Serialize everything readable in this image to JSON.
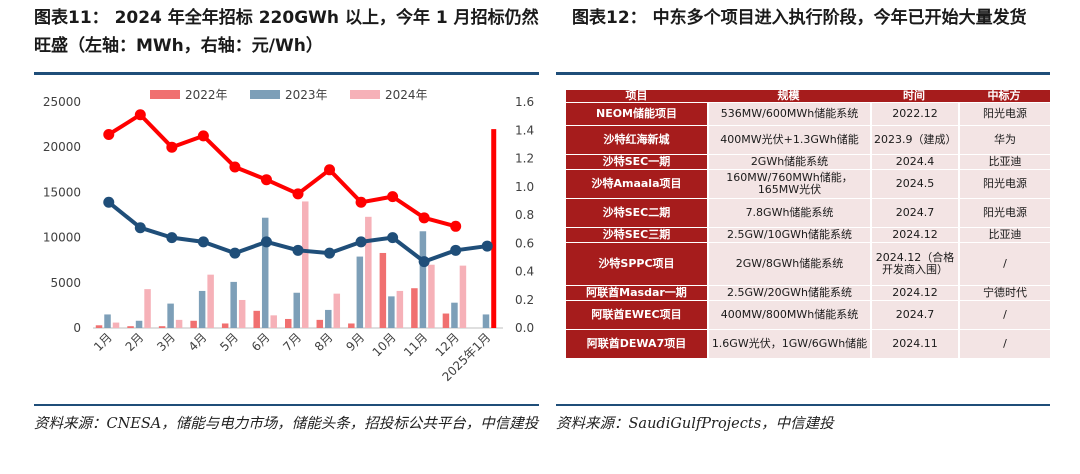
{
  "figure11": {
    "title": "图表11：  2024 年全年招标 220GWh 以上，今年 1 月招标仍然旺盛（左轴：MWh，右轴：元/Wh）",
    "source": "资料来源：CNESA，储能与电力市场，储能头条，招投标公共平台，中信建投"
  },
  "figure12": {
    "title": "图表12：  中东多个项目进入执行阶段，今年已开始大量发货",
    "source": "资料来源：SaudiGulfProjects，中信建投"
  },
  "colors": {
    "bar_2022": "#f07070",
    "bar_2023": "#7d9fb8",
    "bar_2024": "#f6b1b8",
    "line_2024": "#ff0000",
    "line_2023": "#1f4e79",
    "bar_2025": "#ff0000",
    "table_header": "#a61c1c",
    "table_cell": "#f3e4e4",
    "rule": "#1f4e79"
  },
  "chart_data": {
    "type": "bar",
    "categories": [
      "1月",
      "2月",
      "3月",
      "4月",
      "5月",
      "6月",
      "7月",
      "8月",
      "9月",
      "10月",
      "11月",
      "12月",
      "2025年1月"
    ],
    "left_axis": {
      "ticks": [
        "0",
        "5000",
        "10000",
        "15000",
        "20000",
        "25000"
      ],
      "ylim": [
        0,
        25000
      ]
    },
    "right_axis": {
      "ticks": [
        "0.0",
        "0.2",
        "0.4",
        "0.6",
        "0.8",
        "1.0",
        "1.2",
        "1.4",
        "1.6"
      ],
      "ylim": [
        0,
        1.6
      ]
    },
    "legend_position": "top",
    "series": [
      {
        "name": "2022年",
        "kind": "bar",
        "axis": "left",
        "values": [
          300,
          200,
          200,
          800,
          500,
          1900,
          1000,
          900,
          500,
          8300,
          4400,
          1600,
          null
        ]
      },
      {
        "name": "2023年",
        "kind": "bar",
        "axis": "left",
        "values": [
          1500,
          800,
          2700,
          4100,
          5100,
          12200,
          3900,
          2000,
          7900,
          3500,
          10700,
          2800,
          1500
        ]
      },
      {
        "name": "2024年",
        "kind": "bar",
        "axis": "left",
        "values": [
          600,
          4300,
          900,
          5900,
          3100,
          1400,
          14000,
          3800,
          12300,
          4100,
          7000,
          6900,
          null
        ]
      },
      {
        "kind": "line",
        "axis": "right",
        "values": [
          1.37,
          1.51,
          1.28,
          1.36,
          1.14,
          1.05,
          0.95,
          1.12,
          0.89,
          0.93,
          0.78,
          0.72,
          null
        ]
      },
      {
        "kind": "line",
        "axis": "right",
        "values": [
          0.89,
          0.71,
          0.64,
          0.61,
          0.53,
          0.61,
          0.55,
          0.53,
          0.61,
          0.64,
          0.47,
          0.55,
          0.58
        ]
      },
      {
        "kind": "bar",
        "axis": "left",
        "values": [
          null,
          null,
          null,
          null,
          null,
          null,
          null,
          null,
          null,
          null,
          null,
          null,
          22000
        ]
      }
    ]
  },
  "table": {
    "headers": [
      "项目",
      "规模",
      "时间",
      "中标方"
    ],
    "rows": [
      {
        "name": "NEOM储能项目",
        "scale": "536MW/600MWh储能系统",
        "time": "2022.12",
        "winner": "阳光电源"
      },
      {
        "name": "沙特红海新城",
        "scale": "400MW光伏+1.3GWh储能",
        "time": "2023.9（建成）",
        "winner": "华为"
      },
      {
        "name": "沙特SEC一期",
        "scale": "2GWh储能系统",
        "time": "2024.4",
        "winner": "比亚迪"
      },
      {
        "name": "沙特Amaala项目",
        "scale": "160MW/760MWh储能，165MW光伏",
        "time": "2024.5",
        "winner": "阳光电源"
      },
      {
        "name": "沙特SEC二期",
        "scale": "7.8GWh储能系统",
        "time": "2024.7",
        "winner": "阳光电源"
      },
      {
        "name": "沙特SEC三期",
        "scale": "2.5GW/10GWh储能系统",
        "time": "2024.12",
        "winner": "比亚迪"
      },
      {
        "name": "沙特SPPC项目",
        "scale": "2GW/8GWh储能系统",
        "time": "2024.12（合格开发商入围）",
        "winner": "/"
      },
      {
        "name": "阿联酋Masdar一期",
        "scale": "2.5GW/20GWh储能系统",
        "time": "2024.12",
        "winner": "宁德时代"
      },
      {
        "name": "阿联酋EWEC项目",
        "scale": "400MW/800MWh储能系统",
        "time": "2024.7",
        "winner": "/"
      },
      {
        "name": "阿联酋DEWA7项目",
        "scale": "1.6GW光伏，1GW/6GWh储能",
        "time": "2024.11",
        "winner": "/"
      }
    ]
  }
}
